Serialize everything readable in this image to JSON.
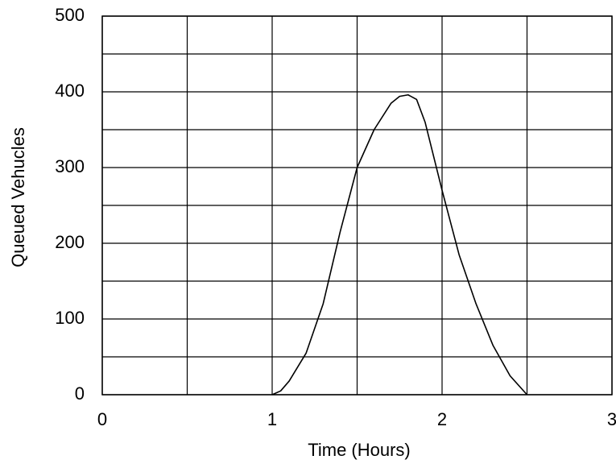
{
  "chart_data": {
    "type": "line",
    "x_label": "Time (Hours)",
    "y_label": "Queued Vehucles",
    "x": [
      1,
      1.05,
      1.1,
      1.2,
      1.3,
      1.4,
      1.5,
      1.6,
      1.7,
      1.75,
      1.8,
      1.85,
      1.9,
      2,
      2.1,
      2.2,
      2.3,
      2.4,
      2.5
    ],
    "values": [
      0,
      5,
      18,
      55,
      120,
      215,
      300,
      350,
      385,
      394,
      396,
      390,
      360,
      270,
      185,
      120,
      65,
      25,
      0
    ],
    "color": "#000000",
    "xlim": [
      0,
      3
    ],
    "xticks": [
      0,
      1,
      2,
      3
    ],
    "xgrid": [
      0.5,
      1.5,
      2.5
    ],
    "ylim": [
      0,
      500
    ],
    "yticks": [
      0,
      100,
      200,
      300,
      400,
      500
    ],
    "ygrid": [
      50,
      150,
      250,
      350,
      450
    ],
    "grid": true
  }
}
